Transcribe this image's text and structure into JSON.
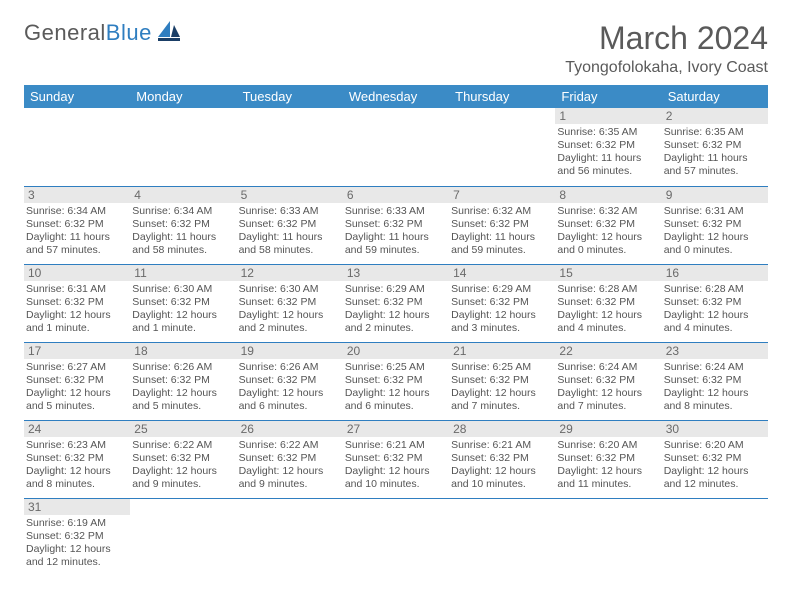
{
  "logo": {
    "general": "General",
    "blue": "Blue"
  },
  "title": "March 2024",
  "subtitle": "Tyongofolokaha, Ivory Coast",
  "header_bg": "#3b8bc6",
  "header_text": "#ffffff",
  "daybar_bg": "#e8e8e8",
  "row_border": "#2f7ec0",
  "dayNames": [
    "Sunday",
    "Monday",
    "Tuesday",
    "Wednesday",
    "Thursday",
    "Friday",
    "Saturday"
  ],
  "weeks": [
    [
      null,
      null,
      null,
      null,
      null,
      {
        "n": "1",
        "sr": "Sunrise: 6:35 AM",
        "ss": "Sunset: 6:32 PM",
        "dl": "Daylight: 11 hours and 56 minutes."
      },
      {
        "n": "2",
        "sr": "Sunrise: 6:35 AM",
        "ss": "Sunset: 6:32 PM",
        "dl": "Daylight: 11 hours and 57 minutes."
      }
    ],
    [
      {
        "n": "3",
        "sr": "Sunrise: 6:34 AM",
        "ss": "Sunset: 6:32 PM",
        "dl": "Daylight: 11 hours and 57 minutes."
      },
      {
        "n": "4",
        "sr": "Sunrise: 6:34 AM",
        "ss": "Sunset: 6:32 PM",
        "dl": "Daylight: 11 hours and 58 minutes."
      },
      {
        "n": "5",
        "sr": "Sunrise: 6:33 AM",
        "ss": "Sunset: 6:32 PM",
        "dl": "Daylight: 11 hours and 58 minutes."
      },
      {
        "n": "6",
        "sr": "Sunrise: 6:33 AM",
        "ss": "Sunset: 6:32 PM",
        "dl": "Daylight: 11 hours and 59 minutes."
      },
      {
        "n": "7",
        "sr": "Sunrise: 6:32 AM",
        "ss": "Sunset: 6:32 PM",
        "dl": "Daylight: 11 hours and 59 minutes."
      },
      {
        "n": "8",
        "sr": "Sunrise: 6:32 AM",
        "ss": "Sunset: 6:32 PM",
        "dl": "Daylight: 12 hours and 0 minutes."
      },
      {
        "n": "9",
        "sr": "Sunrise: 6:31 AM",
        "ss": "Sunset: 6:32 PM",
        "dl": "Daylight: 12 hours and 0 minutes."
      }
    ],
    [
      {
        "n": "10",
        "sr": "Sunrise: 6:31 AM",
        "ss": "Sunset: 6:32 PM",
        "dl": "Daylight: 12 hours and 1 minute."
      },
      {
        "n": "11",
        "sr": "Sunrise: 6:30 AM",
        "ss": "Sunset: 6:32 PM",
        "dl": "Daylight: 12 hours and 1 minute."
      },
      {
        "n": "12",
        "sr": "Sunrise: 6:30 AM",
        "ss": "Sunset: 6:32 PM",
        "dl": "Daylight: 12 hours and 2 minutes."
      },
      {
        "n": "13",
        "sr": "Sunrise: 6:29 AM",
        "ss": "Sunset: 6:32 PM",
        "dl": "Daylight: 12 hours and 2 minutes."
      },
      {
        "n": "14",
        "sr": "Sunrise: 6:29 AM",
        "ss": "Sunset: 6:32 PM",
        "dl": "Daylight: 12 hours and 3 minutes."
      },
      {
        "n": "15",
        "sr": "Sunrise: 6:28 AM",
        "ss": "Sunset: 6:32 PM",
        "dl": "Daylight: 12 hours and 4 minutes."
      },
      {
        "n": "16",
        "sr": "Sunrise: 6:28 AM",
        "ss": "Sunset: 6:32 PM",
        "dl": "Daylight: 12 hours and 4 minutes."
      }
    ],
    [
      {
        "n": "17",
        "sr": "Sunrise: 6:27 AM",
        "ss": "Sunset: 6:32 PM",
        "dl": "Daylight: 12 hours and 5 minutes."
      },
      {
        "n": "18",
        "sr": "Sunrise: 6:26 AM",
        "ss": "Sunset: 6:32 PM",
        "dl": "Daylight: 12 hours and 5 minutes."
      },
      {
        "n": "19",
        "sr": "Sunrise: 6:26 AM",
        "ss": "Sunset: 6:32 PM",
        "dl": "Daylight: 12 hours and 6 minutes."
      },
      {
        "n": "20",
        "sr": "Sunrise: 6:25 AM",
        "ss": "Sunset: 6:32 PM",
        "dl": "Daylight: 12 hours and 6 minutes."
      },
      {
        "n": "21",
        "sr": "Sunrise: 6:25 AM",
        "ss": "Sunset: 6:32 PM",
        "dl": "Daylight: 12 hours and 7 minutes."
      },
      {
        "n": "22",
        "sr": "Sunrise: 6:24 AM",
        "ss": "Sunset: 6:32 PM",
        "dl": "Daylight: 12 hours and 7 minutes."
      },
      {
        "n": "23",
        "sr": "Sunrise: 6:24 AM",
        "ss": "Sunset: 6:32 PM",
        "dl": "Daylight: 12 hours and 8 minutes."
      }
    ],
    [
      {
        "n": "24",
        "sr": "Sunrise: 6:23 AM",
        "ss": "Sunset: 6:32 PM",
        "dl": "Daylight: 12 hours and 8 minutes."
      },
      {
        "n": "25",
        "sr": "Sunrise: 6:22 AM",
        "ss": "Sunset: 6:32 PM",
        "dl": "Daylight: 12 hours and 9 minutes."
      },
      {
        "n": "26",
        "sr": "Sunrise: 6:22 AM",
        "ss": "Sunset: 6:32 PM",
        "dl": "Daylight: 12 hours and 9 minutes."
      },
      {
        "n": "27",
        "sr": "Sunrise: 6:21 AM",
        "ss": "Sunset: 6:32 PM",
        "dl": "Daylight: 12 hours and 10 minutes."
      },
      {
        "n": "28",
        "sr": "Sunrise: 6:21 AM",
        "ss": "Sunset: 6:32 PM",
        "dl": "Daylight: 12 hours and 10 minutes."
      },
      {
        "n": "29",
        "sr": "Sunrise: 6:20 AM",
        "ss": "Sunset: 6:32 PM",
        "dl": "Daylight: 12 hours and 11 minutes."
      },
      {
        "n": "30",
        "sr": "Sunrise: 6:20 AM",
        "ss": "Sunset: 6:32 PM",
        "dl": "Daylight: 12 hours and 12 minutes."
      }
    ],
    [
      {
        "n": "31",
        "sr": "Sunrise: 6:19 AM",
        "ss": "Sunset: 6:32 PM",
        "dl": "Daylight: 12 hours and 12 minutes."
      },
      null,
      null,
      null,
      null,
      null,
      null
    ]
  ]
}
